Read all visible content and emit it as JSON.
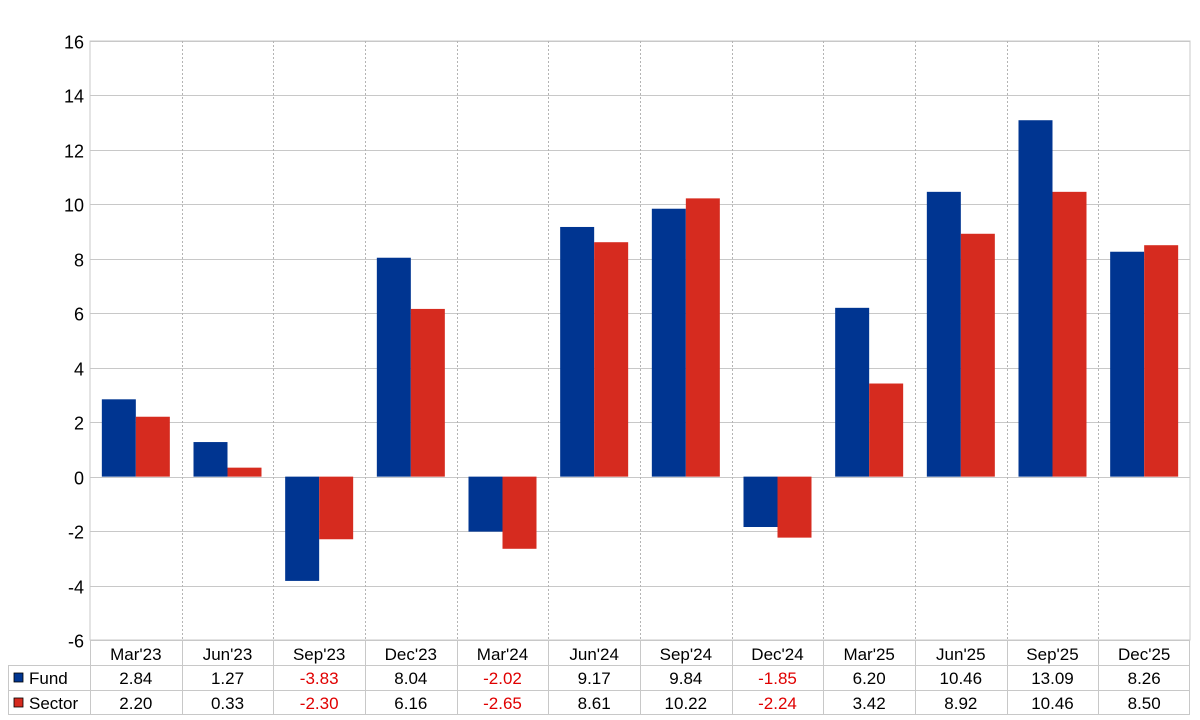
{
  "chart_data": {
    "type": "bar",
    "categories": [
      "Mar'23",
      "Jun'23",
      "Sep'23",
      "Dec'23",
      "Mar'24",
      "Jun'24",
      "Sep'24",
      "Dec'24",
      "Mar'25",
      "Jun'25",
      "Sep'25",
      "Dec'25"
    ],
    "series": [
      {
        "name": "Fund",
        "color": "#003591",
        "values": [
          2.84,
          1.27,
          -3.83,
          8.04,
          -2.02,
          9.17,
          9.84,
          -1.85,
          6.2,
          10.46,
          13.09,
          8.26
        ]
      },
      {
        "name": "Sector",
        "color": "#d62b1f",
        "values": [
          2.2,
          0.33,
          -2.3,
          6.16,
          -2.65,
          8.61,
          10.22,
          -2.24,
          3.42,
          8.92,
          10.46,
          8.5
        ]
      }
    ],
    "ylim": [
      -6,
      16
    ],
    "yticks": [
      -6,
      -4,
      -2,
      0,
      2,
      4,
      6,
      8,
      10,
      12,
      14,
      16
    ],
    "ytick_labels": [
      "-6",
      "-4",
      "-2",
      "0",
      "2",
      "4",
      "6",
      "8",
      "10",
      "12",
      "14",
      "16"
    ],
    "grid": true,
    "negative_value_color": "#e00000",
    "table": {
      "rows": [
        {
          "label": "Fund",
          "values": [
            "2.84",
            "1.27",
            "-3.83",
            "8.04",
            "-2.02",
            "9.17",
            "9.84",
            "-1.85",
            "6.20",
            "10.46",
            "13.09",
            "8.26"
          ]
        },
        {
          "label": "Sector",
          "values": [
            "2.20",
            "0.33",
            "-2.30",
            "6.16",
            "-2.65",
            "8.61",
            "10.22",
            "-2.24",
            "3.42",
            "8.92",
            "10.46",
            "8.50"
          ]
        }
      ]
    }
  }
}
